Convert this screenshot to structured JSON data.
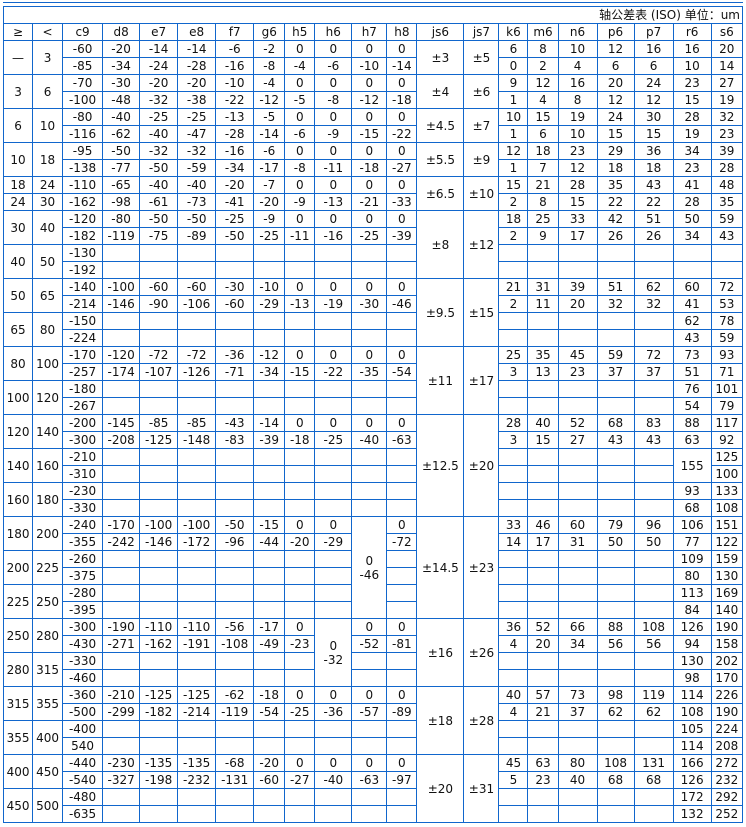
{
  "title": "轴公差表 (ISO) 单位：um",
  "headers": [
    "≥",
    "<",
    "c9",
    "d8",
    "e7",
    "e8",
    "f7",
    "g6",
    "h5",
    "h6",
    "h7",
    "h8",
    "js6",
    "js7",
    "k6",
    "m6",
    "n6",
    "p6",
    "p7",
    "r6",
    "s6"
  ],
  "border_color": "#1166cc",
  "rows": [
    [
      [
        "—",
        2
      ],
      [
        "3",
        2
      ],
      "-60",
      "-20",
      "-14",
      "-14",
      "-6",
      "-2",
      "0",
      "0",
      "0",
      "0",
      [
        "±3",
        2
      ],
      [
        "±5",
        2
      ],
      "6",
      "8",
      "10",
      "12",
      "16",
      "16",
      "20"
    ],
    [
      "-85",
      "-34",
      "-24",
      "-28",
      "-16",
      "-8",
      "-4",
      "-6",
      "-10",
      "-14",
      "0",
      "2",
      "4",
      "6",
      "6",
      "10",
      "14"
    ],
    [
      [
        "3",
        2
      ],
      [
        "6",
        2
      ],
      "-70",
      "-30",
      "-20",
      "-20",
      "-10",
      "-4",
      "0",
      "0",
      "0",
      "0",
      [
        "±4",
        2
      ],
      [
        "±6",
        2
      ],
      "9",
      "12",
      "16",
      "20",
      "24",
      "23",
      "27"
    ],
    [
      "-100",
      "-48",
      "-32",
      "-38",
      "-22",
      "-12",
      "-5",
      "-8",
      "-12",
      "-18",
      "1",
      "4",
      "8",
      "12",
      "12",
      "15",
      "19"
    ],
    [
      [
        "6",
        2
      ],
      [
        "10",
        2
      ],
      "-80",
      "-40",
      "-25",
      "-25",
      "-13",
      "-5",
      "0",
      "0",
      "0",
      "0",
      [
        "±4.5",
        2
      ],
      [
        "±7",
        2
      ],
      "10",
      "15",
      "19",
      "24",
      "30",
      "28",
      "32"
    ],
    [
      "-116",
      "-62",
      "-40",
      "-47",
      "-28",
      "-14",
      "-6",
      "-9",
      "-15",
      "-22",
      "1",
      "6",
      "10",
      "15",
      "15",
      "19",
      "23"
    ],
    [
      [
        "10",
        2
      ],
      [
        "18",
        2
      ],
      "-95",
      "-50",
      "-32",
      "-32",
      "-16",
      "-6",
      "0",
      "0",
      "0",
      "0",
      [
        "±5.5",
        2
      ],
      [
        "±9",
        2
      ],
      "12",
      "18",
      "23",
      "29",
      "36",
      "34",
      "39"
    ],
    [
      "-138",
      "-77",
      "-50",
      "-59",
      "-34",
      "-17",
      "-8",
      "-11",
      "-18",
      "-27",
      "1",
      "7",
      "12",
      "18",
      "18",
      "23",
      "28"
    ],
    [
      "18",
      "24",
      "-110",
      "-65",
      "-40",
      "-40",
      "-20",
      "-7",
      "0",
      "0",
      "0",
      "0",
      [
        "±6.5",
        2
      ],
      [
        "±10",
        2
      ],
      "15",
      "21",
      "28",
      "35",
      "43",
      "41",
      "48"
    ],
    [
      "24",
      "30",
      "-162",
      "-98",
      "-61",
      "-73",
      "-41",
      "-20",
      "-9",
      "-13",
      "-21",
      "-33",
      "2",
      "8",
      "15",
      "22",
      "22",
      "28",
      "35"
    ],
    [
      [
        "30",
        2
      ],
      [
        "40",
        2
      ],
      "-120",
      "-80",
      "-50",
      "-50",
      "-25",
      "-9",
      "0",
      "0",
      "0",
      "0",
      [
        "±8",
        4
      ],
      [
        "±12",
        4
      ],
      "18",
      "25",
      "33",
      "42",
      "51",
      "50",
      "59"
    ],
    [
      "-182",
      "-119",
      "-75",
      "-89",
      "-50",
      "-25",
      "-11",
      "-16",
      "-25",
      "-39",
      "2",
      "9",
      "17",
      "26",
      "26",
      "34",
      "43"
    ],
    [
      [
        "40",
        2
      ],
      [
        "50",
        2
      ],
      "-130",
      "",
      "",
      "",
      "",
      "",
      "",
      "",
      "",
      "",
      "",
      "",
      "",
      "",
      "",
      "",
      ""
    ],
    [
      "-192",
      "",
      "",
      "",
      "",
      "",
      "",
      "",
      "",
      "",
      "",
      "",
      "",
      "",
      "",
      "",
      ""
    ],
    [
      [
        "50",
        2
      ],
      [
        "65",
        2
      ],
      "-140",
      "-100",
      "-60",
      "-60",
      "-30",
      "-10",
      "0",
      "0",
      "0",
      "0",
      [
        "±9.5",
        4
      ],
      [
        "±15",
        4
      ],
      "21",
      "31",
      "39",
      "51",
      "62",
      "60",
      "72"
    ],
    [
      "-214",
      "-146",
      "-90",
      "-106",
      "-60",
      "-29",
      "-13",
      "-19",
      "-30",
      "-46",
      "2",
      "11",
      "20",
      "32",
      "32",
      "41",
      "53"
    ],
    [
      [
        "65",
        2
      ],
      [
        "80",
        2
      ],
      "-150",
      "",
      "",
      "",
      "",
      "",
      "",
      "",
      "",
      "",
      "",
      "",
      "",
      "",
      "",
      "62",
      "78"
    ],
    [
      "-224",
      "",
      "",
      "",
      "",
      "",
      "",
      "",
      "",
      "",
      "",
      "",
      "",
      "",
      "",
      "43",
      "59"
    ],
    [
      [
        "80",
        2
      ],
      [
        "100",
        2
      ],
      "-170",
      "-120",
      "-72",
      "-72",
      "-36",
      "-12",
      "0",
      "0",
      "0",
      "0",
      [
        "±11",
        4
      ],
      [
        "±17",
        4
      ],
      "25",
      "35",
      "45",
      "59",
      "72",
      "73",
      "93"
    ],
    [
      "-257",
      "-174",
      "-107",
      "-126",
      "-71",
      "-34",
      "-15",
      "-22",
      "-35",
      "-54",
      "3",
      "13",
      "23",
      "37",
      "37",
      "51",
      "71"
    ],
    [
      [
        "100",
        2
      ],
      [
        "120",
        2
      ],
      "-180",
      "",
      "",
      "",
      "",
      "",
      "",
      "",
      "",
      "",
      "",
      "",
      "",
      "",
      "",
      "76",
      "101"
    ],
    [
      "-267",
      "",
      "",
      "",
      "",
      "",
      "",
      "",
      "",
      "",
      "",
      "",
      "",
      "",
      "",
      "54",
      "79"
    ],
    [
      [
        "120",
        2
      ],
      [
        "140",
        2
      ],
      "-200",
      "-145",
      "-85",
      "-85",
      "-43",
      "-14",
      "0",
      "0",
      "0",
      "0",
      [
        "±12.5",
        6
      ],
      [
        "±20",
        6
      ],
      "28",
      "40",
      "52",
      "68",
      "83",
      "88",
      "117"
    ],
    [
      "-300",
      "-208",
      "-125",
      "-148",
      "-83",
      "-39",
      "-18",
      "-25",
      "-40",
      "-63",
      "3",
      "15",
      "27",
      "43",
      "43",
      "63",
      "92"
    ],
    [
      [
        "140",
        2
      ],
      [
        "160",
        2
      ],
      "-210",
      "",
      "",
      "",
      "",
      "",
      "",
      "",
      "",
      "",
      "",
      "",
      "",
      "",
      "",
      [
        "155",
        2
      ],
      "125"
    ],
    [
      "-310",
      "",
      "",
      "",
      "",
      "",
      "",
      "",
      "",
      "",
      "",
      "",
      "",
      "",
      "",
      "100"
    ],
    [
      [
        "160",
        2
      ],
      [
        "180",
        2
      ],
      "-230",
      "",
      "",
      "",
      "",
      "",
      "",
      "",
      "",
      "",
      "",
      "",
      "",
      "",
      "",
      "93",
      "133"
    ],
    [
      "-330",
      "",
      "",
      "",
      "",
      "",
      "",
      "",
      "",
      "",
      "",
      "",
      "",
      "",
      "",
      "68",
      "108"
    ],
    [
      [
        "180",
        2
      ],
      [
        "200",
        2
      ],
      "-240",
      "-170",
      "-100",
      "-100",
      "-50",
      "-15",
      "0",
      "0",
      [
        "0\n-46",
        6
      ],
      "0",
      [
        "±14.5",
        6
      ],
      [
        "±23",
        6
      ],
      "33",
      "46",
      "60",
      "79",
      "96",
      "106",
      "151"
    ],
    [
      "-355",
      "-242",
      "-146",
      "-172",
      "-96",
      "-44",
      "-20",
      "-29",
      "-72",
      "14",
      "17",
      "31",
      "50",
      "50",
      "77",
      "122"
    ],
    [
      [
        "200",
        2
      ],
      [
        "225",
        2
      ],
      "-260",
      "",
      "",
      "",
      "",
      "",
      "",
      "",
      "",
      "",
      "",
      "",
      "",
      "",
      "109",
      "159"
    ],
    [
      "-375",
      "",
      "",
      "",
      "",
      "",
      "",
      "",
      "",
      "",
      "",
      "",
      "",
      "",
      "80",
      "130"
    ],
    [
      [
        "225",
        2
      ],
      [
        "250",
        2
      ],
      "-280",
      "",
      "",
      "",
      "",
      "",
      "",
      "",
      "",
      "",
      "",
      "",
      "",
      "",
      "113",
      "169"
    ],
    [
      "-395",
      "",
      "",
      "",
      "",
      "",
      "",
      "",
      "",
      "",
      "",
      "",
      "",
      "",
      "84",
      "140"
    ],
    [
      [
        "250",
        2
      ],
      [
        "280",
        2
      ],
      "-300",
      "-190",
      "-110",
      "-110",
      "-56",
      "-17",
      "0",
      [
        "0\n-32",
        4
      ],
      "0",
      "0",
      [
        "±16",
        4
      ],
      [
        "±26",
        4
      ],
      "36",
      "52",
      "66",
      "88",
      "108",
      "126",
      "190"
    ],
    [
      "-430",
      "-271",
      "-162",
      "-191",
      "-108",
      "-49",
      "-23",
      "-52",
      "-81",
      "4",
      "20",
      "34",
      "56",
      "56",
      "94",
      "158"
    ],
    [
      [
        "280",
        2
      ],
      [
        "315",
        2
      ],
      "-330",
      "",
      "",
      "",
      "",
      "",
      "",
      "",
      "",
      "",
      "",
      "",
      "",
      "",
      "130",
      "202"
    ],
    [
      "-460",
      "",
      "",
      "",
      "",
      "",
      "",
      "",
      "",
      "",
      "",
      "",
      "",
      "",
      "98",
      "170"
    ],
    [
      [
        "315",
        2
      ],
      [
        "355",
        2
      ],
      "-360",
      "-210",
      "-125",
      "-125",
      "-62",
      "-18",
      "0",
      "0",
      "0",
      "0",
      [
        "±18",
        4
      ],
      [
        "±28",
        4
      ],
      "40",
      "57",
      "73",
      "98",
      "119",
      "114",
      "226"
    ],
    [
      "-500",
      "-299",
      "-182",
      "-214",
      "-119",
      "-54",
      "-25",
      "-36",
      "-57",
      "-89",
      "4",
      "21",
      "37",
      "62",
      "62",
      "108",
      "190"
    ],
    [
      [
        "355",
        2
      ],
      [
        "400",
        2
      ],
      "-400",
      "",
      "",
      "",
      "",
      "",
      "",
      "",
      "",
      "",
      "",
      "",
      "",
      "",
      "",
      "105",
      "224"
    ],
    [
      "540",
      "",
      "",
      "",
      "",
      "",
      "",
      "",
      "",
      "",
      "",
      "",
      "",
      "",
      "",
      "114",
      "208"
    ],
    [
      [
        "400",
        2
      ],
      [
        "450",
        2
      ],
      "-440",
      "-230",
      "-135",
      "-135",
      "-68",
      "-20",
      "0",
      "0",
      "0",
      "0",
      [
        "±20",
        4
      ],
      [
        "±31",
        4
      ],
      "45",
      "63",
      "80",
      "108",
      "131",
      "166",
      "272"
    ],
    [
      "-540",
      "-327",
      "-198",
      "-232",
      "-131",
      "-60",
      "-27",
      "-40",
      "-63",
      "-97",
      "5",
      "23",
      "40",
      "68",
      "68",
      "126",
      "232"
    ],
    [
      [
        "450",
        2
      ],
      [
        "500",
        2
      ],
      "-480",
      "",
      "",
      "",
      "",
      "",
      "",
      "",
      "",
      "",
      "",
      "",
      "",
      "",
      "",
      "172",
      "292"
    ],
    [
      "-635",
      "",
      "",
      "",
      "",
      "",
      "",
      "",
      "",
      "",
      "",
      "",
      "",
      "",
      "",
      "132",
      "252"
    ]
  ]
}
